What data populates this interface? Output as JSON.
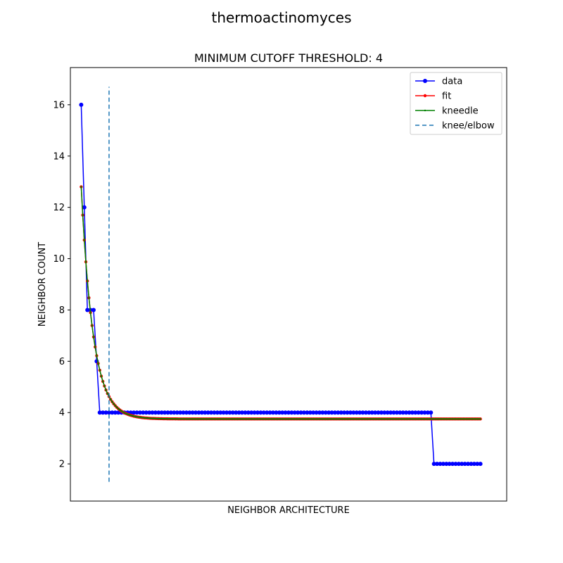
{
  "figure": {
    "suptitle": "thermoactinomyces"
  },
  "chart_data": {
    "type": "line",
    "title": "MINIMUM CUTOFF THRESHOLD: 4",
    "xlabel": "NEIGHBOR ARCHITECTURE",
    "ylabel": "NEIGHBOR COUNT",
    "xlim": [
      -3.5,
      137.5
    ],
    "ylim": [
      0.55,
      17.45
    ],
    "yticks": [
      2,
      4,
      6,
      8,
      10,
      12,
      14,
      16
    ],
    "xticks_visible": false,
    "grid": false,
    "legend": {
      "placement": "top-right",
      "entries": [
        {
          "label": "data",
          "color": "#0000ff",
          "style": "solid-line-circle-marker"
        },
        {
          "label": "fit",
          "color": "#ff0000",
          "style": "solid-line-small-dot-marker"
        },
        {
          "label": "kneedle",
          "color": "#008000",
          "style": "solid-line-point-marker"
        },
        {
          "label": "knee/elbow",
          "color": "#1f77b4",
          "style": "dashed"
        }
      ]
    },
    "series": [
      {
        "name": "data",
        "color": "#0000ff",
        "segments": [
          {
            "x_start": 0,
            "x_end": 0,
            "y": 16
          },
          {
            "x_start": 1,
            "x_end": 1,
            "y": 12
          },
          {
            "x_start": 2,
            "x_end": 4,
            "y": 8
          },
          {
            "x_start": 5,
            "x_end": 5,
            "y": 6
          },
          {
            "x_start": 6,
            "x_end": 113,
            "y": 4
          },
          {
            "x_start": 114,
            "x_end": 129,
            "y": 2
          }
        ]
      },
      {
        "name": "fit",
        "color": "#ff0000",
        "model": "exponential_decay",
        "params": {
          "a": 9.05,
          "b": 0.26,
          "c": 3.75
        },
        "x_range": [
          0,
          129
        ]
      },
      {
        "name": "kneedle",
        "color": "#008000",
        "model": "exponential_decay",
        "params": {
          "a": 9.05,
          "b": 0.26,
          "c": 3.75
        },
        "x_range": [
          0,
          129
        ]
      }
    ],
    "knee": {
      "x": 9,
      "y_range": [
        1.3,
        16.7
      ],
      "color": "#1f77b4",
      "label": "knee/elbow"
    }
  }
}
